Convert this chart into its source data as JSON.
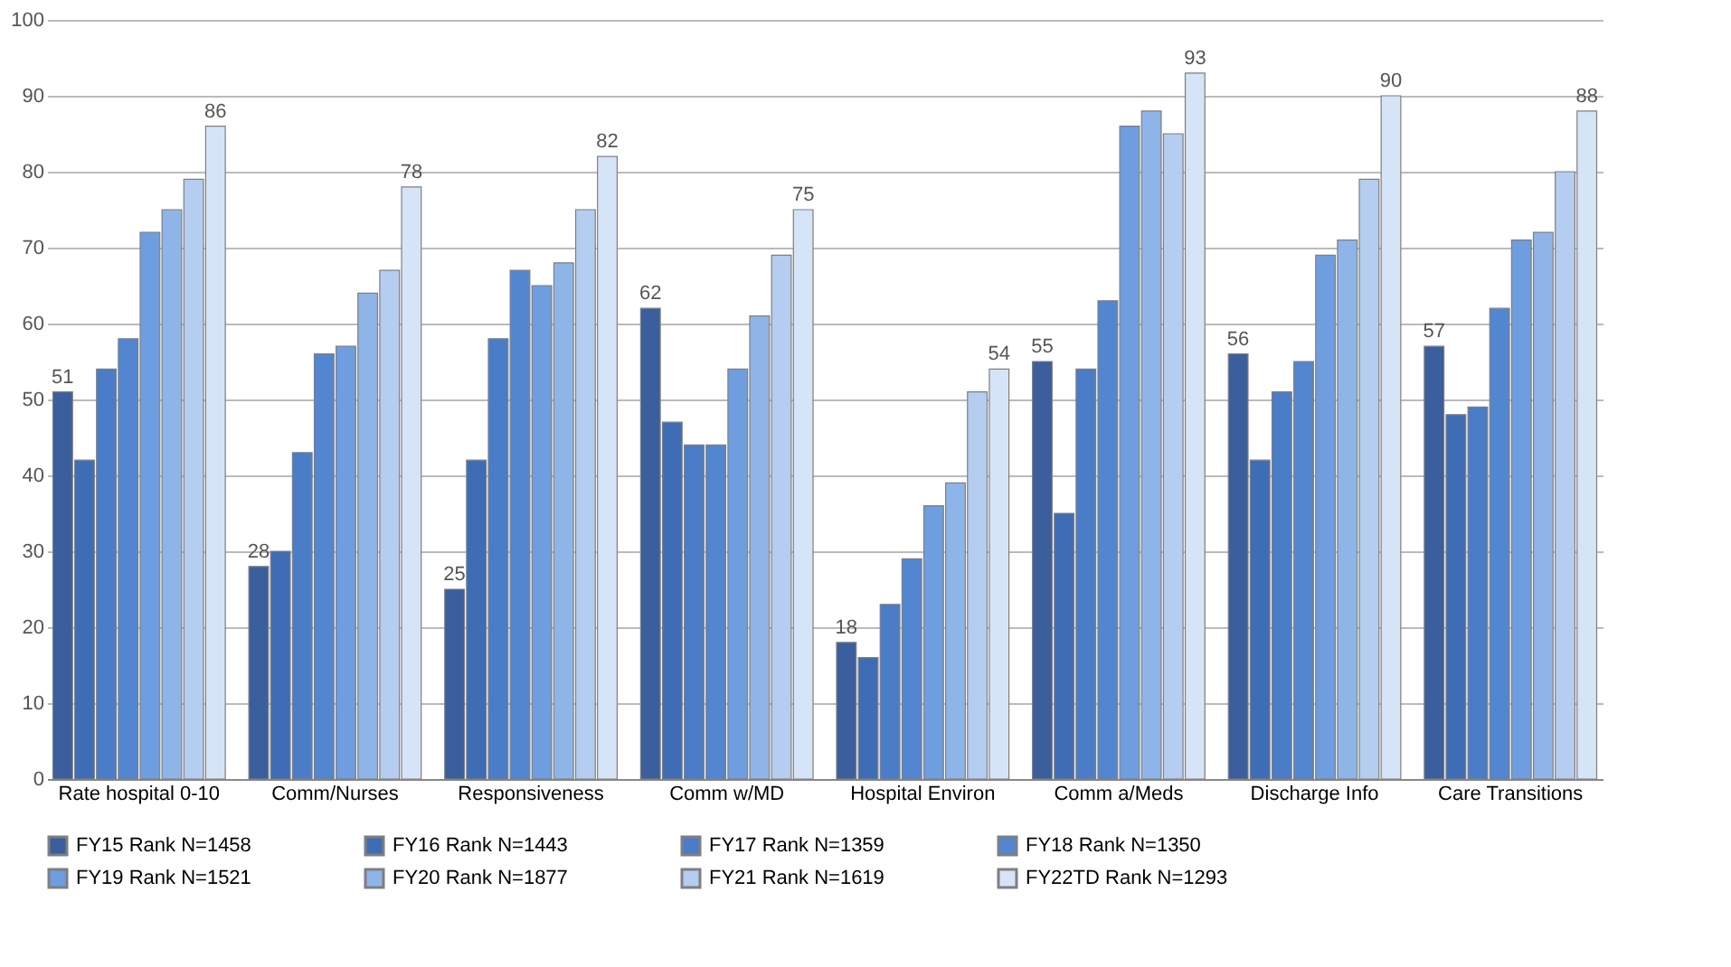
{
  "chart_data": {
    "type": "bar",
    "categories": [
      "Rate hospital 0-10",
      "Comm/Nurses",
      "Responsiveness",
      "Comm w/MD",
      "Hospital Environ",
      "Comm a/Meds",
      "Discharge Info",
      "Care Transitions"
    ],
    "series": [
      {
        "name": "FY15 Rank N=1458",
        "color": "#3b5f9c",
        "values": [
          51,
          28,
          25,
          62,
          18,
          55,
          56,
          57
        ],
        "value_labels": [
          "51",
          "28",
          "25",
          "62",
          "18",
          "55",
          "56",
          "57"
        ]
      },
      {
        "name": "FY16 Rank N=1443",
        "color": "#3f6db5",
        "values": [
          42,
          30,
          42,
          47,
          16,
          35,
          42,
          48
        ]
      },
      {
        "name": "FY17 Rank N=1359",
        "color": "#4a7cc8",
        "values": [
          54,
          43,
          58,
          44,
          23,
          54,
          51,
          49
        ]
      },
      {
        "name": "FY18 Rank N=1350",
        "color": "#5286d0",
        "values": [
          58,
          56,
          67,
          44,
          29,
          63,
          55,
          62
        ]
      },
      {
        "name": "FY19 Rank N=1521",
        "color": "#6e9de0",
        "values": [
          72,
          57,
          65,
          54,
          36,
          86,
          69,
          71
        ]
      },
      {
        "name": "FY20 Rank N=1877",
        "color": "#8fb4e8",
        "values": [
          75,
          64,
          68,
          61,
          39,
          88,
          71,
          72
        ]
      },
      {
        "name": "FY21 Rank N=1619",
        "color": "#b4cdf0",
        "values": [
          79,
          67,
          75,
          69,
          51,
          85,
          79,
          80
        ]
      },
      {
        "name": "FY22TD Rank N=1293",
        "color": "#d6e4f7",
        "values": [
          86,
          78,
          82,
          75,
          54,
          93,
          90,
          88
        ],
        "value_labels": [
          "86",
          "78",
          "82",
          "75",
          "54",
          "93",
          "90",
          "88"
        ]
      }
    ],
    "ylim": [
      0,
      100
    ],
    "yticks": [
      0,
      10,
      20,
      30,
      40,
      50,
      60,
      70,
      80,
      90,
      100
    ],
    "grid": "y",
    "legend": "bottom"
  }
}
